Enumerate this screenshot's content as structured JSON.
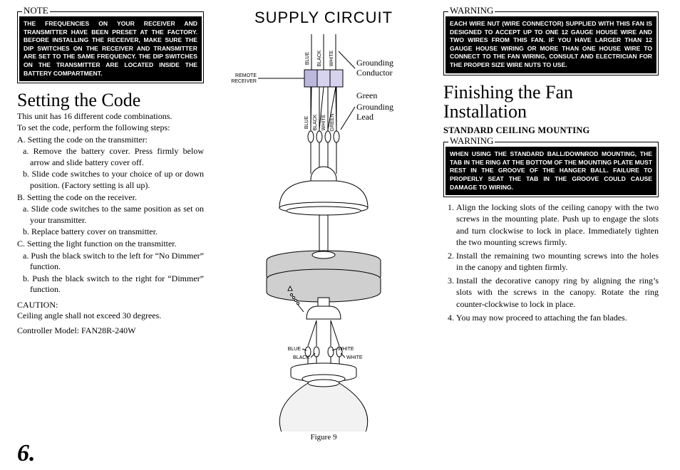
{
  "page_number": "6.",
  "left": {
    "note_legend": "NOTE",
    "note_box": "THE FREQUENCIES ON YOUR RECEIVER AND TRANSMITTER HAVE BEEN PRESET AT THE FACTORY. BEFORE INSTALLING THE RECEIVER, MAKE SURE THE DIP SWITCHES ON THE RECEIVER AND TRANSMITTER ARE SET TO THE SAME FREQUENCY. THE DIP SWITCHES ON THE TRANSMITTER ARE LOCATED INSIDE THE BATTERY COMPARTMENT.",
    "heading": "Setting the Code",
    "intro1": "This unit has 16 different code combinations.",
    "intro2": "To set the code, perform the following steps:",
    "A": "A. Setting the code on the transmitter:",
    "A_a": "a. Remove the battery cover. Press firmly below arrow and slide battery cover off.",
    "A_b": "b. Slide code switches to your choice of up or down position. (Factory setting is all up).",
    "B": "B. Setting the code on the receiver.",
    "B_a": "a. Slide code switches to the same position as set on your transmitter.",
    "B_b": "b. Replace battery cover on transmitter.",
    "C": "C. Setting the light function on the transmitter.",
    "C_a": "a. Push the black switch to the left for “No Dimmer” function.",
    "C_b": "b. Push the black switch to the right for “Dimmer” function.",
    "caution_label": "CAUTION:",
    "caution_text": "Ceiling angle shall not exceed 30 degrees.",
    "model": "Controller Model: FAN28R-240W"
  },
  "mid": {
    "title": "SUPPLY CIRCUIT",
    "remote_label_1": "REMOTE",
    "remote_label_2": "RECEIVER",
    "top_wires": [
      "BLUE",
      "BLACK",
      "WHITE"
    ],
    "grounding_conductor": "Grounding Conductor",
    "green_lead_1": "Green",
    "green_lead_2": "Grounding Lead",
    "mid_wires": [
      "BLUE",
      "BLACK",
      "WHITE",
      "GREEN"
    ],
    "bottom_left": [
      "BLUE",
      "BLACK"
    ],
    "bottom_right": [
      "WHITE",
      "WHITE"
    ],
    "figure": "Figure 9",
    "colors": {
      "bg": "#ffffff",
      "stroke": "#000000",
      "receiver_fill": "#d7d2ee",
      "receiver_blue": "#bcb8dc",
      "motor_fill": "#cfcfcf",
      "glass_fill": "#f2f2f2"
    }
  },
  "right": {
    "warn1_legend": "WARNING",
    "warn1_box": "EACH WIRE NUT (WIRE CONNECTOR) SUPPLIED WITH THIS FAN IS DESIGNED TO ACCEPT UP TO ONE 12 GAUGE HOUSE WIRE AND TWO WIRES FROM THIS FAN. IF YOU HAVE LARGER THAN 12 GAUGE HOUSE WIRING OR MORE THAN ONE HOUSE WIRE TO CONNECT TO THE FAN WIRING, CONSULT AND ELECTRICIAN FOR THE PROPER SIZE WIRE NUTS TO USE.",
    "heading": "Finishing the Fan Installation",
    "subhead": "STANDARD CEILING MOUNTING",
    "warn2_legend": "WARNING",
    "warn2_box": "WHEN USING THE STANDARD BALL/DOWNROD MOUNTING, THE TAB IN THE RING AT THE BOTTOM OF THE MOUNTING PLATE MUST REST IN THE GROOVE OF THE HANGER BALL. FAILURE TO PROPERLY SEAT THE TAB IN THE GROOVE COULD CAUSE DAMAGE TO WIRING.",
    "steps": [
      "Align the locking slots of the ceiling canopy with the two screws in the mounting plate. Push up to engage the slots and turn clockwise to lock in place. Immediately tighten the two mounting screws firmly.",
      "Install the remaining two mounting screws into the holes in the canopy and tighten firmly.",
      "Install the decorative canopy ring by aligning the ring’s slots with the screws in the canopy. Rotate the ring counter-clockwise to lock in place.",
      "You may now proceed to attaching the fan blades."
    ]
  }
}
